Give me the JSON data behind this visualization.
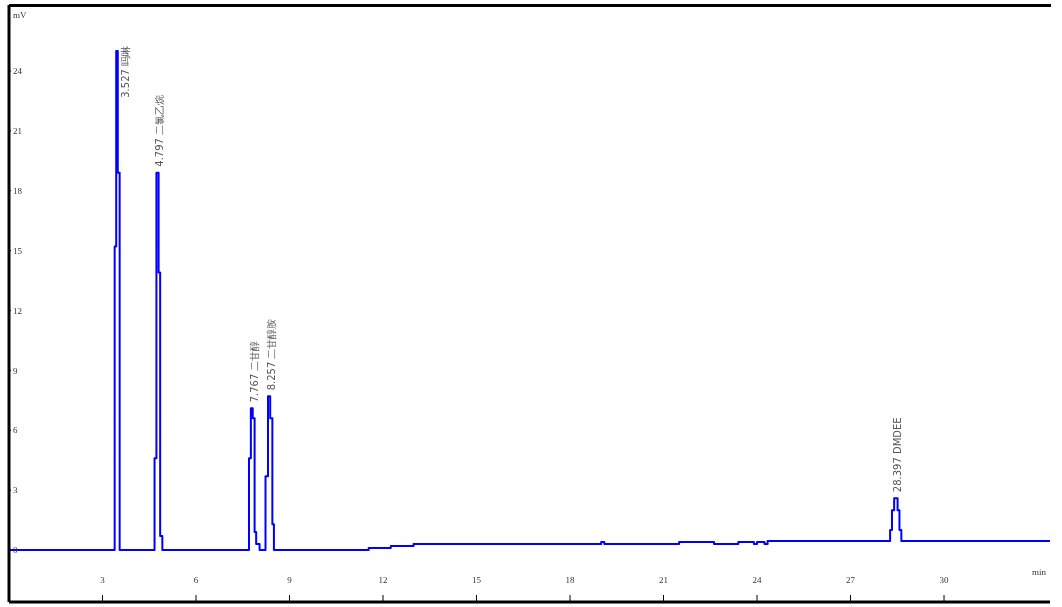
{
  "chart_data": {
    "type": "step",
    "xlabel": "min",
    "ylabel": "mV",
    "color": "#0000ff",
    "x": [
      0,
      3.39,
      3.44,
      3.49,
      3.55,
      4.67,
      4.73,
      4.8,
      4.85,
      4.92,
      7.7,
      7.76,
      7.82,
      7.88,
      7.93,
      8.04,
      8.23,
      8.31,
      8.38,
      8.45,
      8.5,
      11.54,
      12.25,
      12.98,
      19.0,
      19.1,
      21.5,
      22.62,
      23.4,
      23.9,
      24.0,
      24.24,
      24.34,
      28.27,
      28.33,
      28.4,
      28.51,
      28.57,
      28.63,
      33.4
    ],
    "values": [
      0,
      15.2,
      25.0,
      18.9,
      0,
      4.6,
      18.9,
      13.9,
      0.7,
      0,
      4.6,
      7.1,
      6.6,
      0.9,
      0.3,
      0,
      3.7,
      7.7,
      6.6,
      1.3,
      0,
      0.1,
      0.2,
      0.3,
      0.4,
      0.3,
      0.4,
      0.3,
      0.4,
      0.3,
      0.4,
      0.3,
      0.45,
      1.0,
      2.0,
      2.6,
      2.0,
      1.0,
      0.45,
      0.45
    ],
    "xlim": [
      0,
      33.4
    ],
    "xticks": [
      3,
      6,
      9,
      12,
      15,
      18,
      21,
      24,
      27,
      30
    ],
    "ylim": [
      -2.6,
      27.3
    ],
    "yticks": [
      0,
      3,
      6,
      9,
      12,
      15,
      18,
      21,
      24
    ],
    "annotations": [
      {
        "text": "3.527 吗啉",
        "x": 3.44,
        "y": 25.0
      },
      {
        "text": "4.797 二氯乙烷",
        "x": 4.73,
        "y": 18.9
      },
      {
        "text": "7.767 二甘醇",
        "x": 7.76,
        "y": 7.1
      },
      {
        "text": "8.257 二甘醇胺",
        "x": 8.31,
        "y": 7.7
      },
      {
        "text": "28.397 DMDEE",
        "x": 28.4,
        "y": 2.6
      }
    ]
  }
}
